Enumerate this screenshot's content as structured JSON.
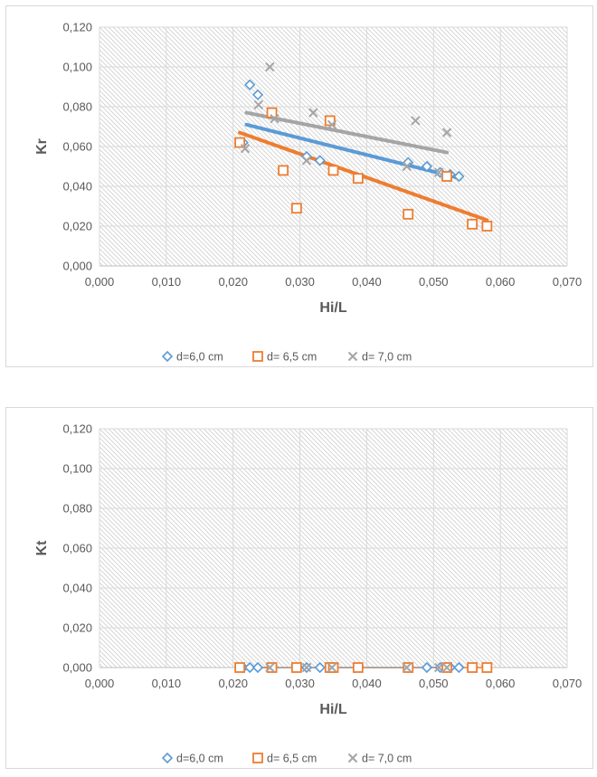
{
  "chart_data": [
    {
      "type": "scatter",
      "xlabel": "Hi/L",
      "ylabel": "Kr",
      "xlim": [
        0,
        0.07
      ],
      "ylim": [
        0,
        0.12
      ],
      "x_ticks": [
        "0,000",
        "0,010",
        "0,020",
        "0,030",
        "0,040",
        "0,050",
        "0,060",
        "0,070"
      ],
      "y_ticks": [
        "0,000",
        "0,020",
        "0,040",
        "0,060",
        "0,080",
        "0,100",
        "0,120"
      ],
      "grid": true,
      "legend": "bottom",
      "series": [
        {
          "name": "d=6,0 cm",
          "marker": "diamond",
          "color": "#5b9bd5",
          "points": [
            [
              0.0215,
              0.062
            ],
            [
              0.0225,
              0.091
            ],
            [
              0.0237,
              0.086
            ],
            [
              0.031,
              0.055
            ],
            [
              0.033,
              0.053
            ],
            [
              0.0462,
              0.052
            ],
            [
              0.049,
              0.05
            ],
            [
              0.051,
              0.047
            ],
            [
              0.0525,
              0.046
            ],
            [
              0.0538,
              0.045
            ]
          ],
          "trendline": [
            [
              0.022,
              0.071
            ],
            [
              0.054,
              0.044
            ]
          ]
        },
        {
          "name": "d= 6,5 cm",
          "marker": "square",
          "color": "#ed7d31",
          "points": [
            [
              0.021,
              0.062
            ],
            [
              0.0258,
              0.077
            ],
            [
              0.0275,
              0.048
            ],
            [
              0.0295,
              0.029
            ],
            [
              0.0345,
              0.073
            ],
            [
              0.035,
              0.048
            ],
            [
              0.0387,
              0.044
            ],
            [
              0.0462,
              0.026
            ],
            [
              0.052,
              0.045
            ],
            [
              0.0558,
              0.021
            ],
            [
              0.058,
              0.02
            ]
          ],
          "trendline": [
            [
              0.021,
              0.067
            ],
            [
              0.058,
              0.023
            ]
          ]
        },
        {
          "name": "d= 7,0 cm",
          "marker": "x",
          "color": "#a5a5a5",
          "points": [
            [
              0.0218,
              0.059
            ],
            [
              0.0238,
              0.081
            ],
            [
              0.0255,
              0.1
            ],
            [
              0.0262,
              0.074
            ],
            [
              0.031,
              0.053
            ],
            [
              0.032,
              0.077
            ],
            [
              0.0348,
              0.071
            ],
            [
              0.046,
              0.05
            ],
            [
              0.0473,
              0.073
            ],
            [
              0.0508,
              0.047
            ],
            [
              0.052,
              0.067
            ]
          ],
          "trendline": [
            [
              0.022,
              0.077
            ],
            [
              0.052,
              0.057
            ]
          ]
        }
      ]
    },
    {
      "type": "scatter",
      "xlabel": "Hi/L",
      "ylabel": "Kt",
      "xlim": [
        0,
        0.07
      ],
      "ylim": [
        0,
        0.12
      ],
      "x_ticks": [
        "0,000",
        "0,010",
        "0,020",
        "0,030",
        "0,040",
        "0,050",
        "0,060",
        "0,070"
      ],
      "y_ticks": [
        "0,000",
        "0,020",
        "0,040",
        "0,060",
        "0,080",
        "0,100",
        "0,120"
      ],
      "grid": true,
      "legend": "bottom",
      "series": [
        {
          "name": "d=6,0 cm",
          "marker": "diamond",
          "color": "#5b9bd5",
          "points": [
            [
              0.0215,
              0
            ],
            [
              0.0225,
              0
            ],
            [
              0.0237,
              0
            ],
            [
              0.031,
              0
            ],
            [
              0.033,
              0
            ],
            [
              0.0462,
              0
            ],
            [
              0.049,
              0
            ],
            [
              0.051,
              0
            ],
            [
              0.0525,
              0
            ],
            [
              0.0538,
              0
            ]
          ],
          "trendline": [
            [
              0.0215,
              0
            ],
            [
              0.0538,
              0
            ]
          ]
        },
        {
          "name": "d= 6,5 cm",
          "marker": "square",
          "color": "#ed7d31",
          "points": [
            [
              0.021,
              0
            ],
            [
              0.0258,
              0
            ],
            [
              0.0295,
              0
            ],
            [
              0.0345,
              0
            ],
            [
              0.035,
              0
            ],
            [
              0.0387,
              0
            ],
            [
              0.0462,
              0
            ],
            [
              0.052,
              0
            ],
            [
              0.0558,
              0
            ],
            [
              0.058,
              0
            ]
          ],
          "trendline": [
            [
              0.021,
              0
            ],
            [
              0.058,
              0
            ]
          ]
        },
        {
          "name": "d= 7,0 cm",
          "marker": "x",
          "color": "#a5a5a5",
          "points": [
            [
              0.0255,
              0
            ],
            [
              0.031,
              0
            ],
            [
              0.0348,
              0
            ],
            [
              0.046,
              0
            ],
            [
              0.0508,
              0
            ],
            [
              0.052,
              0
            ]
          ],
          "trendline": [
            [
              0.0255,
              0
            ],
            [
              0.052,
              0
            ]
          ]
        }
      ]
    }
  ]
}
